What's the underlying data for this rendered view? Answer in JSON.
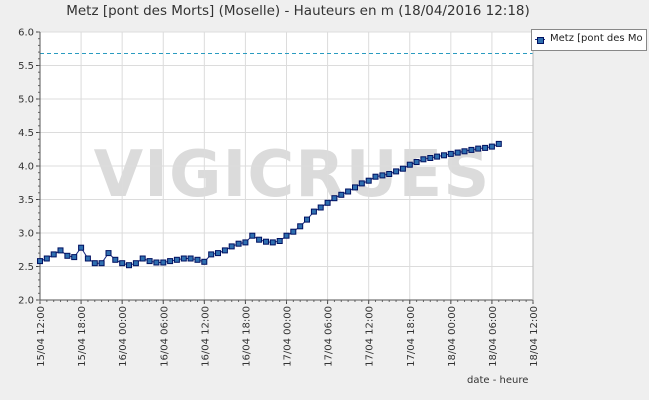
{
  "chart_data": {
    "type": "line",
    "title": "Metz [pont des Morts] (Moselle) - Hauteurs en m (18/04/2016 12:18)",
    "xlabel": "date - heure",
    "ylabel": "",
    "ylim": [
      2.0,
      6.0
    ],
    "yticks": [
      "2.0",
      "2.5",
      "3.0",
      "3.5",
      "4.0",
      "4.5",
      "5.0",
      "5.5",
      "6.0"
    ],
    "xticks": [
      "15/04 12:00",
      "15/04 18:00",
      "16/04 00:00",
      "16/04 06:00",
      "16/04 12:00",
      "16/04 18:00",
      "17/04 00:00",
      "17/04 06:00",
      "17/04 12:00",
      "17/04 18:00",
      "18/04 00:00",
      "18/04 06:00",
      "18/04 12:00"
    ],
    "xlim_hours": [
      0,
      72
    ],
    "grid": true,
    "legend_position": "top-right",
    "threshold": {
      "value": 5.68,
      "style": "dashed",
      "color": "#2a9bc0"
    },
    "series": [
      {
        "name": "Metz [pont des Mo",
        "color": "#2f6fb0",
        "x_hours": [
          0,
          1,
          2,
          3,
          4,
          5,
          6,
          7,
          8,
          9,
          10,
          11,
          12,
          13,
          14,
          15,
          16,
          17,
          18,
          19,
          20,
          21,
          22,
          23,
          24,
          25,
          26,
          27,
          28,
          29,
          30,
          31,
          32,
          33,
          34,
          35,
          36,
          37,
          38,
          39,
          40,
          41,
          42,
          43,
          44,
          45,
          46,
          47,
          48,
          49,
          50,
          51,
          52,
          53,
          54,
          55,
          56,
          57,
          58,
          59,
          60,
          61,
          62,
          63,
          64,
          65,
          66,
          67
        ],
        "values": [
          2.58,
          2.62,
          2.68,
          2.74,
          2.66,
          2.64,
          2.78,
          2.62,
          2.55,
          2.55,
          2.7,
          2.6,
          2.55,
          2.52,
          2.55,
          2.62,
          2.58,
          2.56,
          2.56,
          2.58,
          2.6,
          2.62,
          2.62,
          2.6,
          2.57,
          2.68,
          2.7,
          2.74,
          2.8,
          2.84,
          2.86,
          2.96,
          2.9,
          2.87,
          2.86,
          2.88,
          2.96,
          3.02,
          3.1,
          3.2,
          3.32,
          3.38,
          3.45,
          3.52,
          3.57,
          3.62,
          3.68,
          3.74,
          3.78,
          3.84,
          3.86,
          3.88,
          3.92,
          3.96,
          4.02,
          4.06,
          4.1,
          4.12,
          4.14,
          4.16,
          4.18,
          4.2,
          4.22,
          4.24,
          4.26,
          4.27,
          4.29,
          4.33
        ]
      }
    ]
  },
  "watermark": "VIGICRUES"
}
